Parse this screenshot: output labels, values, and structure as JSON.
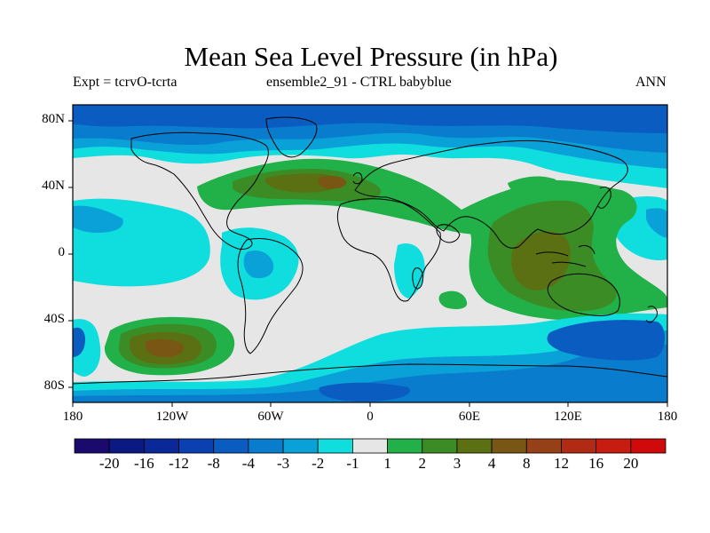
{
  "title": "Mean Sea Level Pressure (in hPa)",
  "subtitle": {
    "left": "Expt = tcrvO-tcrta",
    "center": "ensemble2_91 - CTRL babyblue",
    "right": "ANN"
  },
  "map": {
    "lat_ticks": [
      "80N",
      "40N",
      "0",
      "40S",
      "80S"
    ],
    "lon_ticks": [
      "180",
      "120W",
      "60W",
      "0",
      "60E",
      "120E",
      "180"
    ]
  },
  "colorbar": {
    "labels": [
      "-20",
      "-16",
      "-12",
      "-8",
      "-4",
      "-3",
      "-2",
      "-1",
      "1",
      "2",
      "3",
      "4",
      "8",
      "12",
      "16",
      "20"
    ],
    "colors": [
      "#1a0a6e",
      "#0a1a82",
      "#0a2898",
      "#0a40b0",
      "#0a5cc0",
      "#0a7cce",
      "#0aa0d8",
      "#10dede",
      "#e6e6e6",
      "#22b048",
      "#3c8c26",
      "#5a7012",
      "#7a5614",
      "#964018",
      "#b02a14",
      "#c81c10",
      "#d00a0a"
    ]
  },
  "field_colors": {
    "ocean_neutral": "#e6e6e6",
    "neg1": "#10dede",
    "neg2": "#0aa0d8",
    "neg3": "#0a7cce",
    "neg4": "#0a5cc0",
    "pos1": "#22b048",
    "pos2": "#3c8c26",
    "pos3": "#5a7012",
    "pos4": "#7a5614"
  }
}
